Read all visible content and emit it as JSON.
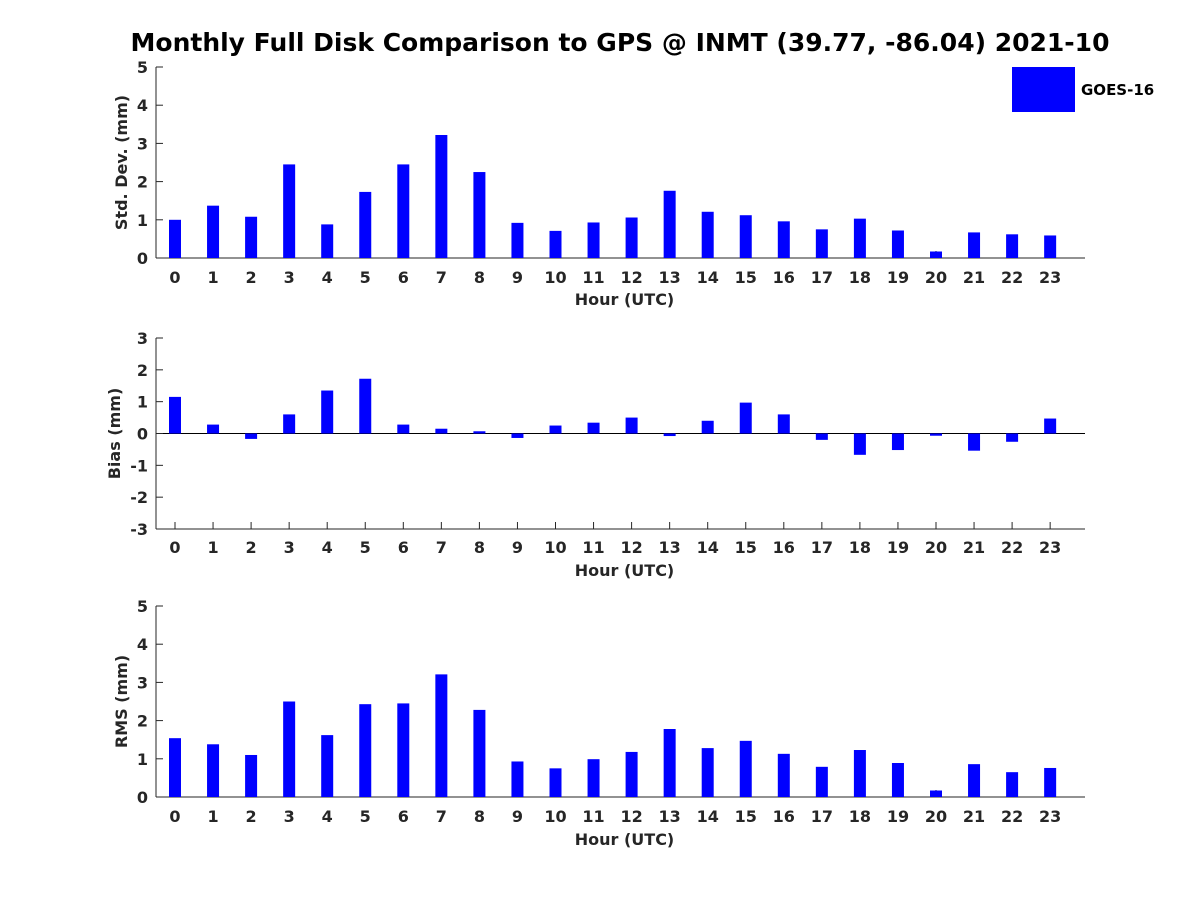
{
  "title": "Monthly Full Disk Comparison to GPS @ INMT (39.77, -86.04) 2021-10",
  "legend": {
    "label": "GOES-16",
    "color": "#0000ff"
  },
  "chart_data": [
    {
      "type": "bar",
      "ylabel": "Std. Dev. (mm)",
      "xlabel": "Hour (UTC)",
      "ylim": [
        0,
        5
      ],
      "yticks": [
        "0",
        "1",
        "2",
        "3",
        "4",
        "5"
      ],
      "categories": [
        "0",
        "1",
        "2",
        "3",
        "4",
        "5",
        "6",
        "7",
        "8",
        "9",
        "10",
        "11",
        "12",
        "13",
        "14",
        "15",
        "16",
        "17",
        "18",
        "19",
        "20",
        "21",
        "22",
        "23"
      ],
      "series": [
        {
          "name": "GOES-16",
          "color": "#0000ff",
          "values": [
            1.0,
            1.37,
            1.08,
            2.45,
            0.88,
            1.73,
            2.45,
            3.22,
            2.25,
            0.92,
            0.71,
            0.93,
            1.06,
            1.76,
            1.21,
            1.12,
            0.96,
            0.75,
            1.03,
            0.72,
            0.17,
            0.67,
            0.62,
            0.59
          ]
        }
      ]
    },
    {
      "type": "bar",
      "ylabel": "Bias (mm)",
      "xlabel": "Hour (UTC)",
      "ylim": [
        -3,
        3
      ],
      "yticks": [
        "-3",
        "-2",
        "-1",
        "0",
        "1",
        "2",
        "3"
      ],
      "categories": [
        "0",
        "1",
        "2",
        "3",
        "4",
        "5",
        "6",
        "7",
        "8",
        "9",
        "10",
        "11",
        "12",
        "13",
        "14",
        "15",
        "16",
        "17",
        "18",
        "19",
        "20",
        "21",
        "22",
        "23"
      ],
      "series": [
        {
          "name": "GOES-16",
          "color": "#0000ff",
          "values": [
            1.15,
            0.28,
            -0.17,
            0.6,
            1.35,
            1.72,
            0.28,
            0.15,
            0.07,
            -0.14,
            0.25,
            0.34,
            0.5,
            -0.08,
            0.4,
            0.97,
            0.6,
            -0.2,
            -0.67,
            -0.52,
            -0.07,
            -0.54,
            -0.26,
            0.47
          ]
        }
      ]
    },
    {
      "type": "bar",
      "ylabel": "RMS (mm)",
      "xlabel": "Hour (UTC)",
      "ylim": [
        0,
        5
      ],
      "yticks": [
        "0",
        "1",
        "2",
        "3",
        "4",
        "5"
      ],
      "categories": [
        "0",
        "1",
        "2",
        "3",
        "4",
        "5",
        "6",
        "7",
        "8",
        "9",
        "10",
        "11",
        "12",
        "13",
        "14",
        "15",
        "16",
        "17",
        "18",
        "19",
        "20",
        "21",
        "22",
        "23"
      ],
      "series": [
        {
          "name": "GOES-16",
          "color": "#0000ff",
          "values": [
            1.54,
            1.38,
            1.1,
            2.5,
            1.62,
            2.43,
            2.45,
            3.21,
            2.28,
            0.93,
            0.75,
            0.99,
            1.18,
            1.78,
            1.28,
            1.47,
            1.13,
            0.79,
            1.23,
            0.89,
            0.17,
            0.86,
            0.65,
            0.76
          ]
        }
      ]
    }
  ]
}
